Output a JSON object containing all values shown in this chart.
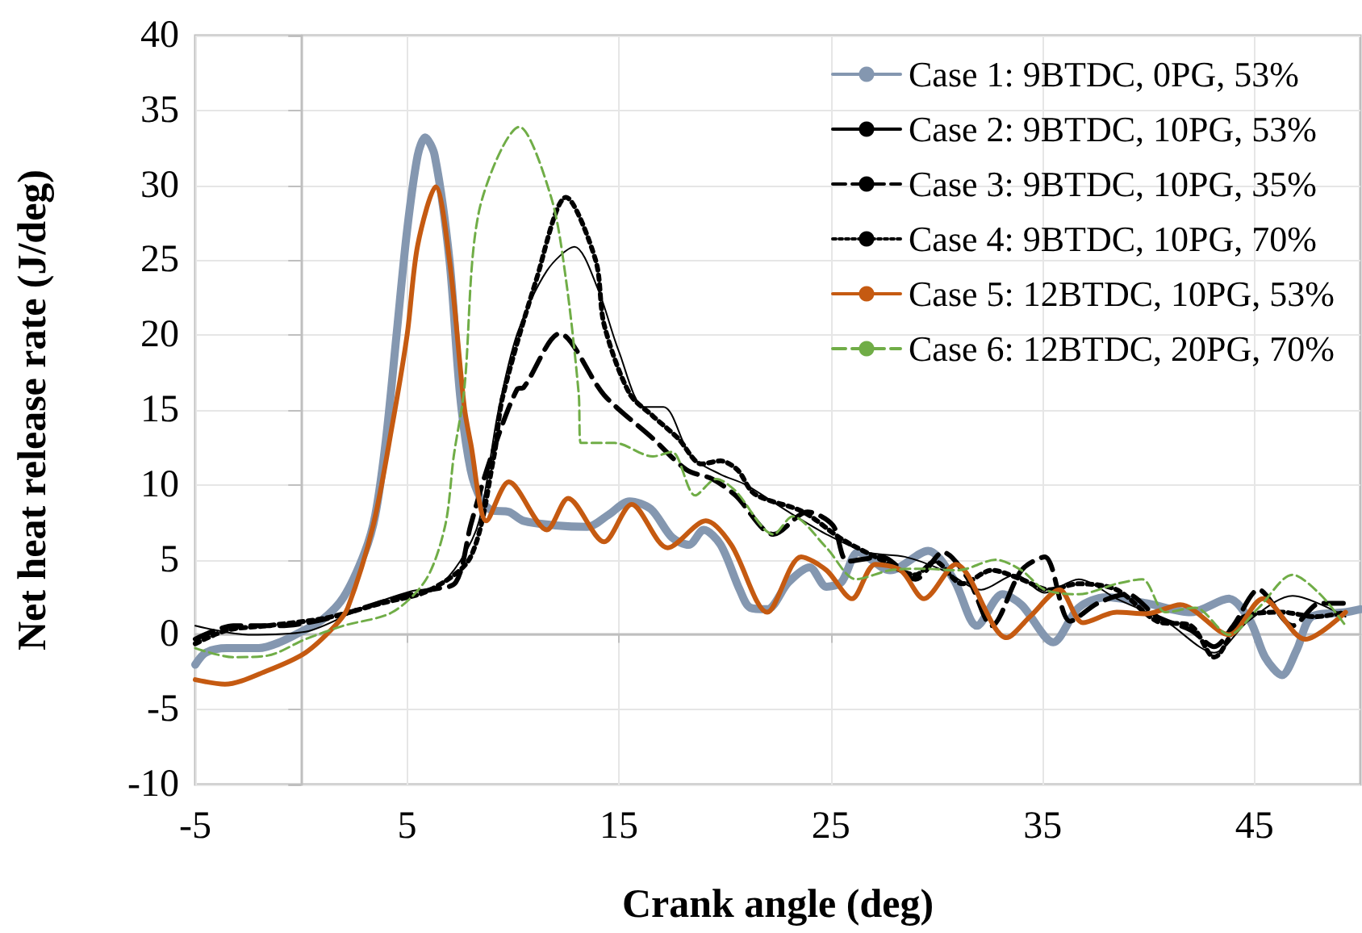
{
  "chart_data": {
    "type": "line",
    "xlabel": "Crank angle (deg)",
    "ylabel": "Net heat release rate (J/deg)",
    "xlim": [
      -5,
      50
    ],
    "xticks": [
      -5,
      5,
      15,
      25,
      35,
      45
    ],
    "ylim": [
      -10,
      40
    ],
    "yticks": [
      -10,
      -5,
      0,
      5,
      10,
      15,
      20,
      25,
      30,
      35,
      40
    ],
    "grid": true,
    "legend": "top right",
    "marker": "none",
    "series": [
      {
        "name": "Case 1: 9BTDC, 0PG, 53%",
        "color": "#8497b0",
        "line_style": "solid",
        "x": [
          -5,
          -4.5,
          -3.5,
          -2,
          -1,
          0,
          1,
          2,
          3,
          3.5,
          4,
          4.5,
          5,
          5.5,
          5.85,
          6.3,
          7,
          7.5,
          8,
          8.5,
          9,
          9.8,
          10.5,
          12,
          13.5,
          14.5,
          15.5,
          16.5,
          17.5,
          18.3,
          19,
          19.8,
          20.7,
          21.2,
          22,
          23,
          24,
          24.8,
          25.5,
          26.3,
          27.8,
          29.6,
          30.8,
          31.9,
          33.1,
          34,
          35.5,
          36.7,
          38,
          39.9,
          42,
          43.8,
          44.8,
          45.5,
          46.3,
          47,
          47.7,
          49.3,
          50
        ],
        "values": [
          -2,
          -1.2,
          -0.9,
          -0.9,
          -0.5,
          0.2,
          1,
          2.5,
          5.5,
          8,
          13,
          20,
          27,
          32,
          33.2,
          32,
          25,
          16,
          11,
          9,
          8.3,
          8.2,
          7.6,
          7.3,
          7.2,
          8,
          8.9,
          8.4,
          6.5,
          6,
          7,
          6,
          3,
          1.8,
          1.7,
          3.5,
          4.5,
          3.2,
          3.5,
          5.5,
          4.3,
          5.6,
          3.7,
          0.6,
          2.7,
          2,
          -0.5,
          1.8,
          2.5,
          2.1,
          1.5,
          2.4,
          0.9,
          -1.5,
          -2.7,
          -1,
          1.2,
          1.5,
          1.7
        ]
      },
      {
        "name": "Case 2: 9BTDC, 10PG, 53%",
        "color": "#000000",
        "line_style": "solid",
        "x": [
          -5,
          -2.5,
          0.2,
          2.9,
          5.2,
          6.4,
          7.5,
          8.4,
          9.3,
          10.2,
          11.6,
          12.9,
          14,
          15,
          16.2,
          17.1,
          18.4,
          19.8,
          21,
          23,
          24.8,
          26.7,
          28.5,
          30.3,
          32.1,
          33.7,
          35.1,
          36.7,
          38.5,
          40.8,
          43.1,
          44.7,
          46.8,
          49.3
        ],
        "values": [
          0.6,
          0,
          0.2,
          1.8,
          2.9,
          3.2,
          4.9,
          7.6,
          14.9,
          20.1,
          24.3,
          25.9,
          23.1,
          18.9,
          15.2,
          15.2,
          11.9,
          10.7,
          10,
          8.2,
          6.7,
          5.5,
          5.2,
          4.3,
          3,
          4,
          2.8,
          3.7,
          2.4,
          0.9,
          -1.2,
          0.9,
          2.6,
          1.2
        ]
      },
      {
        "name": "Case 3: 9BTDC, 10PG, 35%",
        "color": "#000000",
        "line_style": "dashed",
        "x": [
          -5,
          -3.2,
          -1,
          1.3,
          4.1,
          6.1,
          7.3,
          8,
          8.9,
          10.2,
          10.5,
          12.2,
          14.3,
          16.6,
          18.2,
          19.4,
          20.5,
          22.3,
          23.9,
          25.1,
          25.8,
          27.4,
          29,
          30.3,
          31.5,
          32.6,
          34,
          35.1,
          36.3,
          37.6,
          39,
          40.4,
          42,
          43.1,
          44,
          45.2,
          46.8,
          48.1,
          49.3
        ],
        "values": [
          -0.3,
          0.6,
          0.6,
          1.1,
          2.3,
          3,
          3.5,
          7.3,
          11.6,
          16.4,
          16.5,
          20.1,
          16,
          13.1,
          11,
          10.4,
          9.3,
          6.7,
          8.2,
          7.3,
          4.9,
          5.2,
          3.7,
          5.5,
          3.7,
          0.6,
          4.3,
          5.2,
          0.9,
          2.1,
          2.7,
          1.2,
          0.3,
          -0.8,
          0.6,
          3,
          0.6,
          2.1,
          2.1
        ]
      },
      {
        "name": "Case 4: 9BTDC, 10PG, 70%",
        "color": "#000000",
        "line_style": "dotted",
        "x": [
          -5,
          -3.5,
          -1.6,
          1.1,
          3.8,
          6.1,
          8,
          9.1,
          9.5,
          11.1,
          12.5,
          13.9,
          14.3,
          15.5,
          16.6,
          17.8,
          18.9,
          19.8,
          20.6,
          21.4,
          23.7,
          25.5,
          27.1,
          29,
          29.9,
          31.2,
          32.6,
          34,
          35.3,
          36.7,
          38.5,
          40.4,
          42,
          43.1,
          44.5,
          46.3,
          47.9,
          49.3
        ],
        "values": [
          -0.6,
          0.3,
          0.6,
          1.1,
          2.1,
          3,
          5.2,
          11.9,
          15.8,
          23.7,
          29.2,
          25,
          20.7,
          16.1,
          14.6,
          13.1,
          11.4,
          11.6,
          11,
          9.4,
          8.2,
          6.4,
          5.2,
          4,
          4.9,
          3.4,
          4.3,
          3.7,
          3,
          3.4,
          3,
          0.9,
          0.6,
          -1.5,
          1.2,
          1.5,
          1.2,
          1.5
        ]
      },
      {
        "name": "Case 5: 12BTDC, 10PG, 53%",
        "color": "#c55a11",
        "line_style": "solid",
        "x": [
          -5,
          -3.6,
          -1.6,
          0.2,
          1.6,
          2.2,
          3.4,
          4.3,
          5,
          5.5,
          6.35,
          7,
          7.7,
          8,
          8.75,
          9.8,
          11.6,
          12.6,
          14.3,
          15.6,
          17.3,
          19.1,
          20.3,
          22,
          23.6,
          24.8,
          26,
          27.1,
          28.3,
          29.4,
          30.9,
          33.3,
          34.4,
          35.8,
          36.9,
          38.5,
          39.9,
          41.5,
          43.8,
          45.4,
          47.4,
          49.3
        ],
        "values": [
          -3,
          -3.3,
          -2.4,
          -1.2,
          0.6,
          1.8,
          7.3,
          14,
          20,
          26,
          29.9,
          25,
          15.2,
          12.8,
          7.6,
          10.2,
          7,
          9.1,
          6.2,
          8.7,
          5.8,
          7.6,
          6,
          1.5,
          5.2,
          4.3,
          2.4,
          4.7,
          4.3,
          2.4,
          4.7,
          -0.2,
          1.2,
          3,
          0.8,
          1.5,
          1.4,
          2,
          0,
          2.4,
          -0.3,
          1.5
        ]
      },
      {
        "name": "Case 6: 12BTDC, 20PG, 70%",
        "color": "#70ad47",
        "line_style": "dashed",
        "x": [
          -5,
          -3.2,
          -1.6,
          0.2,
          2,
          4.3,
          5.9,
          6.8,
          7.2,
          7.7,
          8.4,
          10.3,
          11.8,
          12.5,
          13.1,
          13.2,
          14.8,
          16.6,
          17.5,
          18.6,
          19.6,
          20.5,
          22.3,
          23.2,
          24.8,
          26.2,
          27.8,
          29.4,
          31,
          32.8,
          34,
          35.1,
          36.7,
          38.5,
          39.7,
          40.8,
          42.2,
          43.8,
          45.2,
          46.8,
          48.1,
          49.3
        ],
        "values": [
          -0.9,
          -1.5,
          -1.4,
          -0.3,
          0.6,
          1.5,
          3.7,
          7.3,
          11.9,
          16.4,
          28.3,
          33.9,
          29.2,
          23.7,
          16.1,
          12.8,
          12.8,
          11.9,
          12.2,
          9.3,
          10.4,
          9.6,
          6.7,
          7.9,
          5.8,
          3.7,
          4.3,
          4.4,
          4.3,
          5,
          4.3,
          3,
          2.7,
          3.4,
          3.7,
          1.5,
          1.8,
          0,
          1.8,
          4,
          2.7,
          0.6
        ]
      }
    ]
  }
}
